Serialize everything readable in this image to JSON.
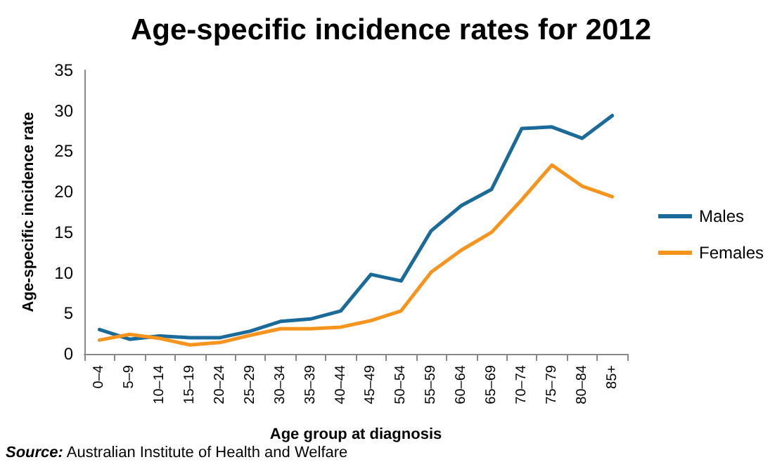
{
  "chart_data": {
    "type": "line",
    "title": "Age-specific incidence rates for 2012",
    "xlabel": "Age group at diagnosis",
    "ylabel": "Age-specific incidence rate",
    "categories": [
      "0–4",
      "5–9",
      "10–14",
      "15–19",
      "20–24",
      "25–29",
      "30–34",
      "35–39",
      "40–44",
      "45–49",
      "50–54",
      "55–59",
      "60–64",
      "65–69",
      "70–74",
      "75–79",
      "80–84",
      "85+"
    ],
    "series": [
      {
        "name": "Males",
        "color": "#1a6b9a",
        "values": [
          3.0,
          1.8,
          2.2,
          2.0,
          2.0,
          2.8,
          4.0,
          4.3,
          5.3,
          9.8,
          9.0,
          15.2,
          18.3,
          20.3,
          27.8,
          28.0,
          26.6,
          29.4
        ]
      },
      {
        "name": "Females",
        "color": "#f7941d",
        "values": [
          1.7,
          2.4,
          1.9,
          1.1,
          1.4,
          2.3,
          3.1,
          3.1,
          3.3,
          4.1,
          5.3,
          10.1,
          12.8,
          15.0,
          19.0,
          23.3,
          20.7,
          19.4
        ]
      }
    ],
    "ylim": [
      0,
      35
    ],
    "yticks": [
      0,
      5,
      10,
      15,
      20,
      25,
      30,
      35
    ],
    "grid": false,
    "legend": "right",
    "marker": "none",
    "line_style": "solid",
    "annotations": [
      "Source: Australian Institute of Health and Welfare"
    ]
  }
}
